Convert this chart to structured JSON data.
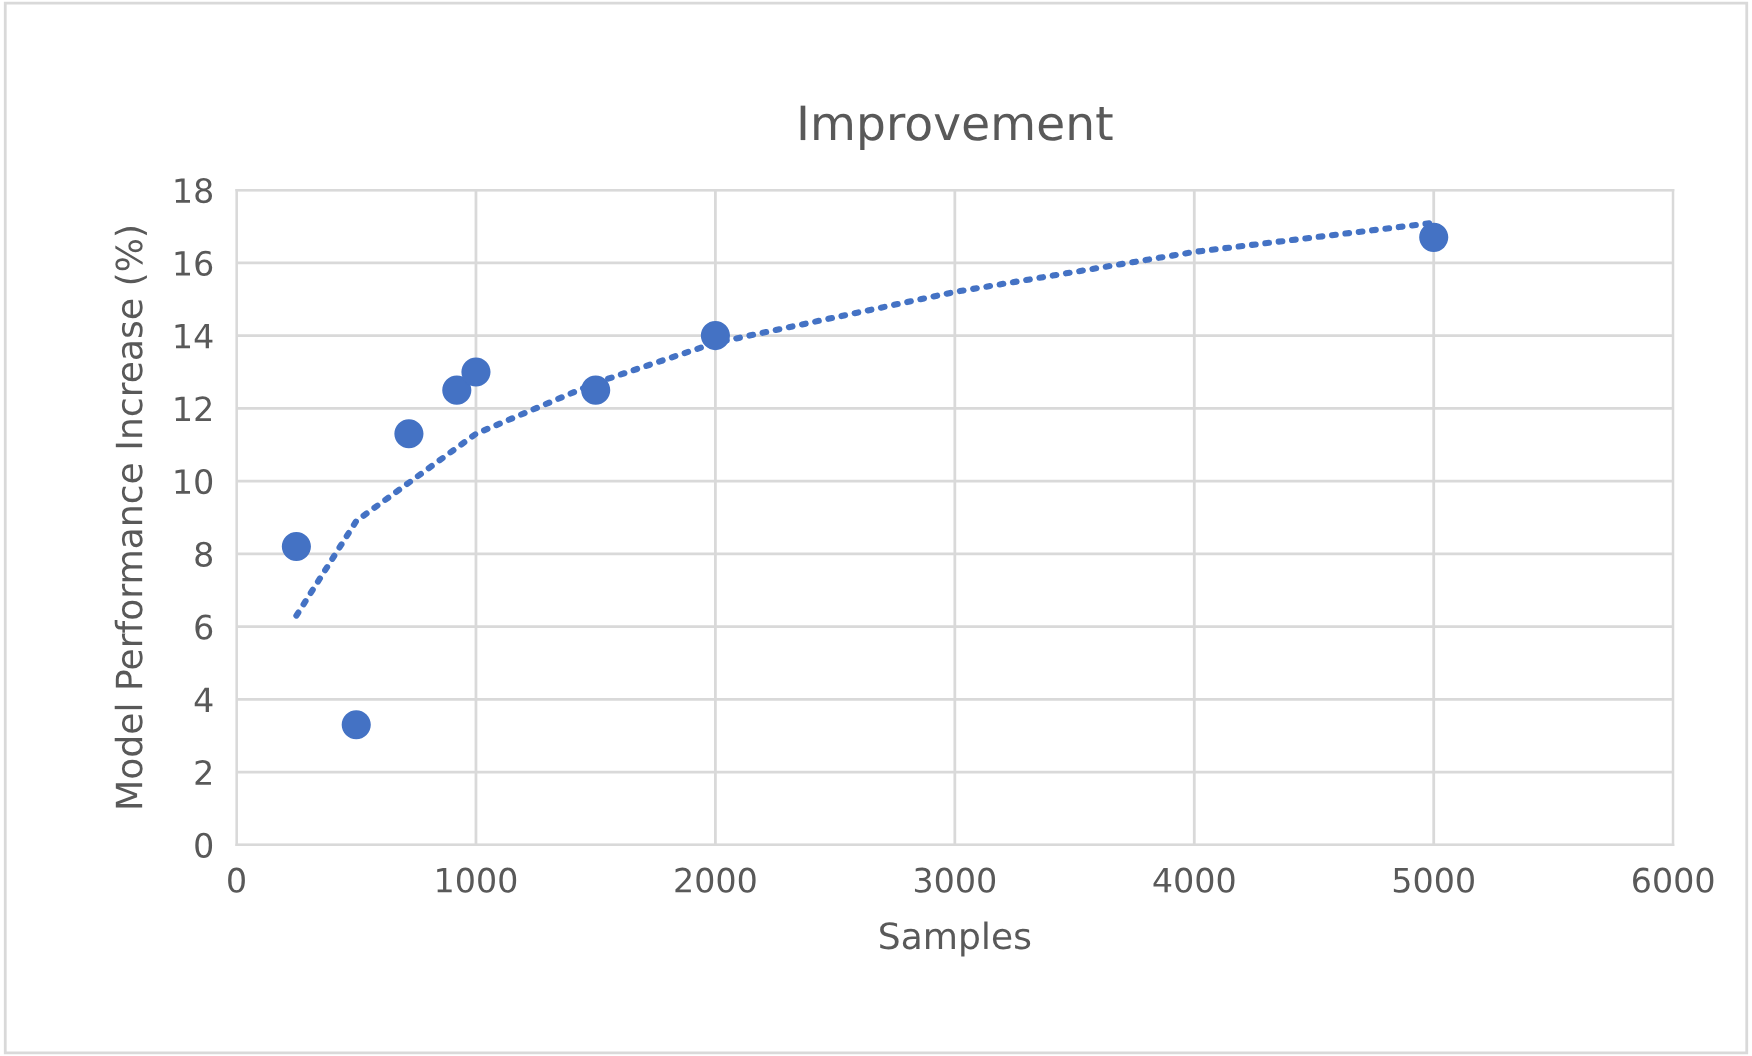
{
  "chart_data": {
    "type": "scatter",
    "title": "Improvement",
    "xlabel": "Samples",
    "ylabel": "Model Performance Increase (%)",
    "xlim": [
      0,
      6000
    ],
    "xticks": [
      0,
      1000,
      2000,
      3000,
      4000,
      5000,
      6000
    ],
    "ylim": [
      0,
      18
    ],
    "yticks": [
      0,
      2,
      4,
      6,
      8,
      10,
      12,
      14,
      16,
      18
    ],
    "grid": true,
    "series": [
      {
        "color": "#4472c4",
        "marker": "circle",
        "x": [
          250,
          500,
          720,
          920,
          1000,
          1500,
          2000,
          5000
        ],
        "values": [
          8.2,
          3.3,
          11.3,
          12.5,
          13.0,
          12.5,
          14.0,
          16.7
        ]
      },
      {
        "type": "line",
        "color": "#4472c4",
        "line_style": "dotted",
        "x": [
          250,
          500,
          1000,
          1500,
          2000,
          3000,
          4000,
          5000
        ],
        "values": [
          6.3,
          8.9,
          11.3,
          12.7,
          13.8,
          15.2,
          16.3,
          17.1
        ]
      }
    ]
  }
}
